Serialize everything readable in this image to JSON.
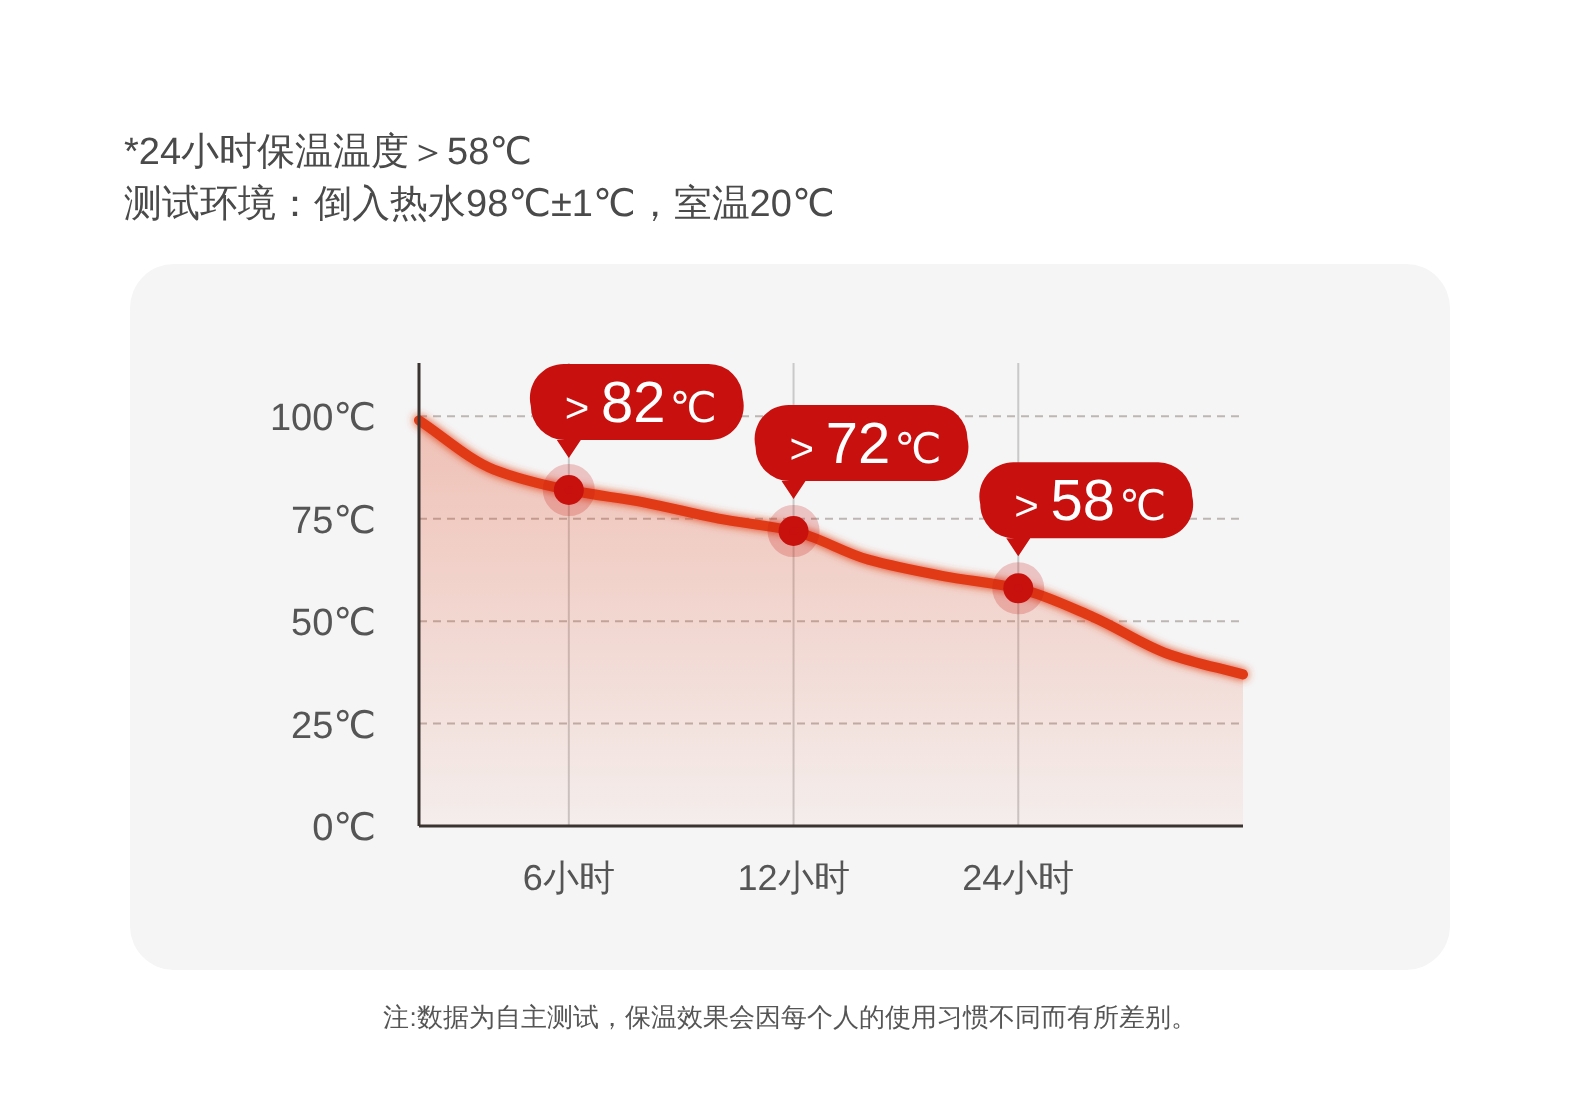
{
  "chart_data": {
    "type": "area",
    "title": "*24小时保温温度＞58℃",
    "subtitle": "测试环境：倒入热水98℃±1℃，室温20℃",
    "annotations": [
      "注:数据为自主测试，保温效果会因每个人的使用习惯不同而有所差别。"
    ],
    "categories": [
      null,
      null,
      "6小时",
      null,
      null,
      "12小时",
      null,
      null,
      "24小时",
      null,
      null,
      null
    ],
    "ylim": [
      0,
      113
    ],
    "yticks": [
      {
        "value": 0,
        "label": "0℃"
      },
      {
        "value": 25,
        "label": "25℃"
      },
      {
        "value": 50,
        "label": "50℃"
      },
      {
        "value": 75,
        "label": "75℃"
      },
      {
        "value": 100,
        "label": "100℃"
      }
    ],
    "grid": true,
    "series": [
      {
        "color": "#e03a12",
        "values": [
          99,
          87,
          82,
          79,
          75,
          72,
          65,
          61,
          58,
          51,
          42,
          37
        ]
      },
      {
        "type": "scatter",
        "color": "#c8100e",
        "marker": "circle",
        "values": [
          null,
          null,
          82,
          null,
          null,
          72,
          null,
          null,
          58,
          null,
          null,
          null
        ],
        "value_labels": [
          null,
          null,
          "> 82℃",
          null,
          null,
          "> 72℃",
          null,
          null,
          "> 58℃",
          null,
          null,
          null
        ]
      }
    ]
  }
}
